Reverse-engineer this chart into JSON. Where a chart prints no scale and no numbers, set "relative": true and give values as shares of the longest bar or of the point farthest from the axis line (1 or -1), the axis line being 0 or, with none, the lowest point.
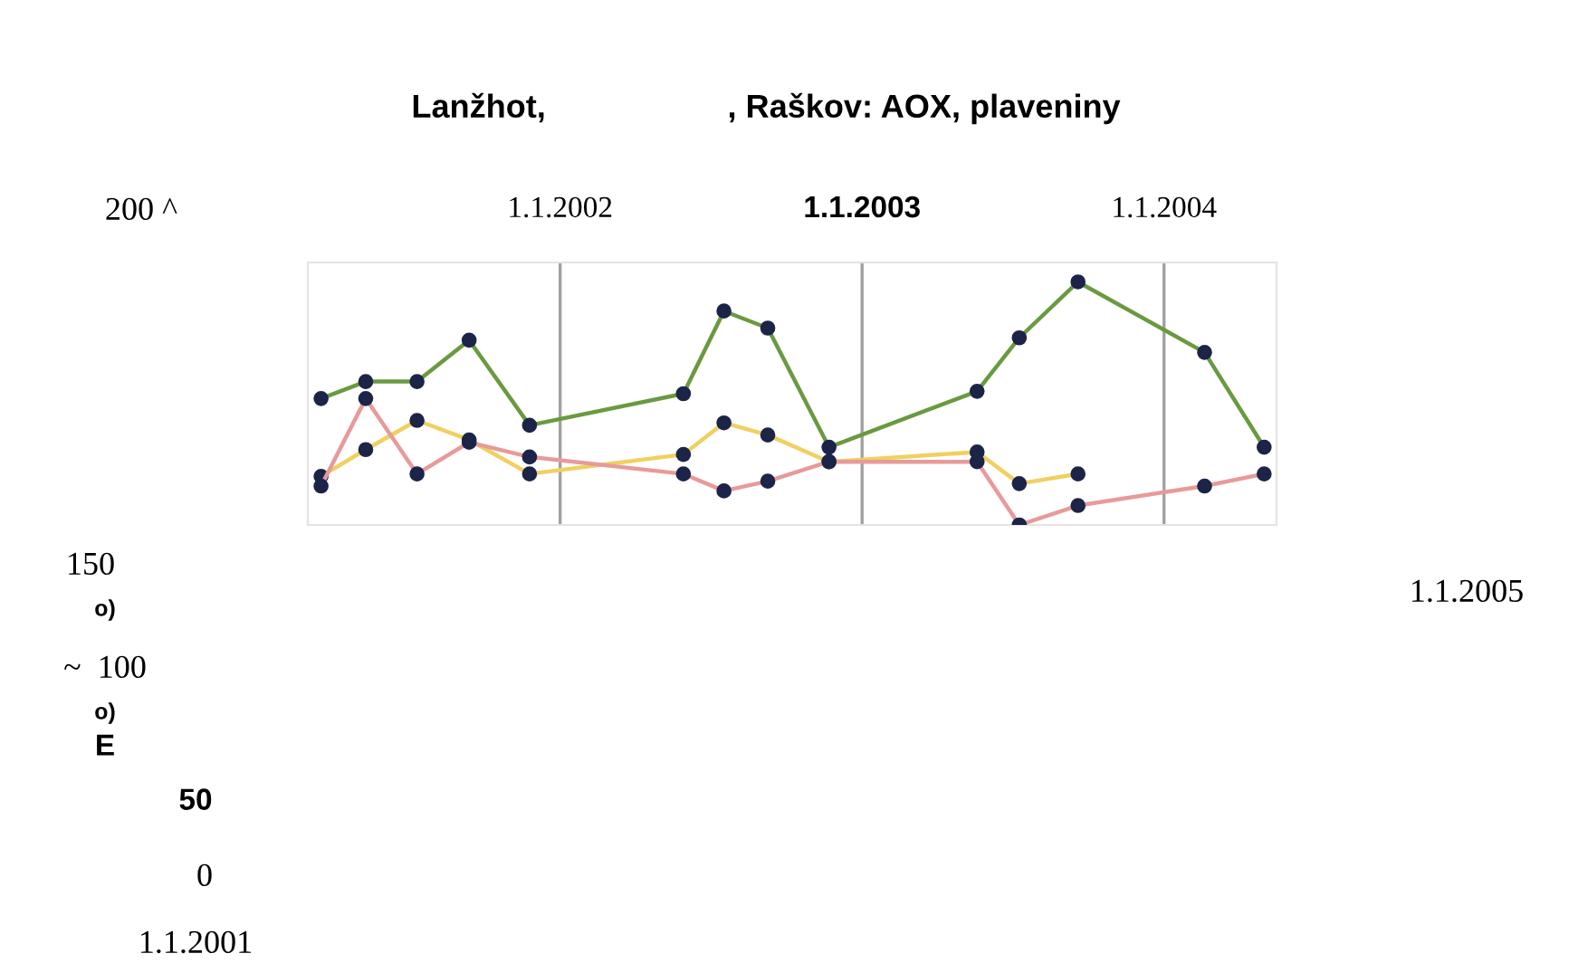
{
  "chart_data": {
    "type": "line",
    "title": "Lanžhot,                    , Raškov: AOX, plaveniny",
    "relative": true,
    "marker": "circle",
    "line_style": "solid",
    "grid": "x",
    "legend": false,
    "tick_labels": "x",
    "xlim": [
      "2001-03-02",
      "2004-05-16"
    ],
    "xticks": [
      {
        "value": "2002-01-01",
        "label": "1.1.2002"
      },
      {
        "value": "2003-01-01",
        "label": "1.1.2003"
      },
      {
        "value": "2004-01-01",
        "label": "1.1.2004"
      }
    ],
    "x": [
      "2001-03-18",
      "2001-05-11",
      "2001-07-12",
      "2001-09-13",
      "2001-11-25",
      "2002-05-30",
      "2002-07-18",
      "2002-09-09",
      "2002-11-22",
      "2003-05-20",
      "2003-07-10",
      "2003-09-19",
      "2004-02-19",
      "2004-05-01"
    ],
    "series": [
      {
        "color": "#6a9a40",
        "values": [
          0.52,
          0.59,
          0.59,
          0.76,
          0.41,
          0.54,
          0.88,
          0.81,
          0.32,
          0.55,
          0.77,
          1.0,
          0.71,
          0.32
        ]
      },
      {
        "color": "#f0d060",
        "values": [
          0.2,
          0.31,
          0.43,
          0.35,
          0.21,
          0.29,
          0.42,
          0.37,
          0.26,
          0.3,
          0.17,
          0.21,
          null,
          null
        ]
      },
      {
        "color": "#e89a9a",
        "values": [
          0.16,
          0.52,
          0.21,
          0.34,
          0.28,
          0.21,
          0.14,
          0.18,
          0.26,
          0.26,
          0.0,
          0.08,
          0.16,
          0.21
        ]
      }
    ],
    "annotations": [
      "200 ^",
      "150",
      "o)",
      "~  100",
      "o)",
      "E",
      "50",
      "0",
      "1.1.2001",
      "1.1.2005"
    ]
  }
}
